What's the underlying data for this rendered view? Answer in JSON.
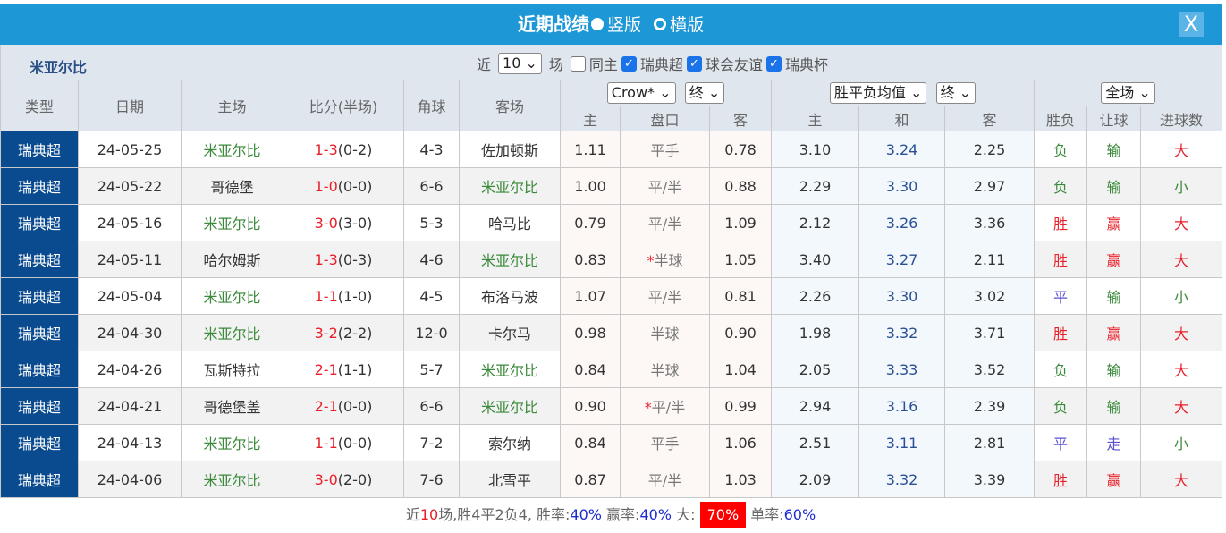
{
  "title": "近期战绩",
  "view_vertical": "竖版",
  "view_horizontal": "横版",
  "close": "X",
  "team": "米亚尔比",
  "filters": {
    "near": "近",
    "count": "10",
    "games": "场",
    "same_home": "同主",
    "comp1": "瑞典超",
    "comp2": "球会友谊",
    "comp3": "瑞典杯"
  },
  "headers": {
    "type": "类型",
    "date": "日期",
    "home": "主场",
    "score": "比分(半场)",
    "corner": "角球",
    "away": "客场",
    "company": "Crow*",
    "final1": "终",
    "avg": "胜平负均值",
    "final2": "终",
    "period": "全场",
    "ah_home": "主",
    "ah_line": "盘口",
    "ah_away": "客",
    "eu_home": "主",
    "eu_draw": "和",
    "eu_away": "客",
    "wl": "胜负",
    "hcp": "让球",
    "goals": "进球数"
  },
  "rows": [
    {
      "type": "瑞典超",
      "date": "24-05-25",
      "home": "米亚尔比",
      "score": "1-3",
      "half": "(0-2)",
      "corner": "4-3",
      "away": "佐加顿斯",
      "h": "1.11",
      "line": "平手",
      "a": "0.78",
      "eh": "3.10",
      "ed": "3.24",
      "ea": "2.25",
      "wl": "负",
      "hcp": "输",
      "goals": "大"
    },
    {
      "type": "瑞典超",
      "date": "24-05-22",
      "home": "哥德堡",
      "score": "1-0",
      "half": "(0-0)",
      "corner": "6-6",
      "away": "米亚尔比",
      "h": "1.00",
      "line": "平/半",
      "a": "0.88",
      "eh": "2.29",
      "ed": "3.30",
      "ea": "2.97",
      "wl": "负",
      "hcp": "输",
      "goals": "小"
    },
    {
      "type": "瑞典超",
      "date": "24-05-16",
      "home": "米亚尔比",
      "score": "3-0",
      "half": "(3-0)",
      "corner": "5-3",
      "away": "哈马比",
      "h": "0.79",
      "line": "平/半",
      "a": "1.09",
      "eh": "2.12",
      "ed": "3.26",
      "ea": "3.36",
      "wl": "胜",
      "hcp": "赢",
      "goals": "大"
    },
    {
      "type": "瑞典超",
      "date": "24-05-11",
      "home": "哈尔姆斯",
      "score": "1-3",
      "half": "(0-3)",
      "corner": "4-6",
      "away": "米亚尔比",
      "h": "0.83",
      "line": "*半球",
      "a": "1.05",
      "eh": "3.40",
      "ed": "3.27",
      "ea": "2.11",
      "wl": "胜",
      "hcp": "赢",
      "goals": "大"
    },
    {
      "type": "瑞典超",
      "date": "24-05-04",
      "home": "米亚尔比",
      "score": "1-1",
      "half": "(1-0)",
      "corner": "4-5",
      "away": "布洛马波",
      "h": "1.07",
      "line": "平/半",
      "a": "0.81",
      "eh": "2.26",
      "ed": "3.30",
      "ea": "3.02",
      "wl": "平",
      "hcp": "输",
      "goals": "小"
    },
    {
      "type": "瑞典超",
      "date": "24-04-30",
      "home": "米亚尔比",
      "score": "3-2",
      "half": "(2-2)",
      "corner": "12-0",
      "away": "卡尔马",
      "h": "0.98",
      "line": "半球",
      "a": "0.90",
      "eh": "1.98",
      "ed": "3.32",
      "ea": "3.71",
      "wl": "胜",
      "hcp": "赢",
      "goals": "大"
    },
    {
      "type": "瑞典超",
      "date": "24-04-26",
      "home": "瓦斯特拉",
      "score": "2-1",
      "half": "(1-1)",
      "corner": "5-7",
      "away": "米亚尔比",
      "h": "0.84",
      "line": "半球",
      "a": "1.04",
      "eh": "2.05",
      "ed": "3.33",
      "ea": "3.52",
      "wl": "负",
      "hcp": "输",
      "goals": "大"
    },
    {
      "type": "瑞典超",
      "date": "24-04-21",
      "home": "哥德堡盖",
      "score": "2-1",
      "half": "(0-0)",
      "corner": "6-6",
      "away": "米亚尔比",
      "h": "0.90",
      "line": "*平/半",
      "a": "0.99",
      "eh": "2.94",
      "ed": "3.16",
      "ea": "2.39",
      "wl": "负",
      "hcp": "输",
      "goals": "大"
    },
    {
      "type": "瑞典超",
      "date": "24-04-13",
      "home": "米亚尔比",
      "score": "1-1",
      "half": "(0-0)",
      "corner": "7-2",
      "away": "索尔纳",
      "h": "0.84",
      "line": "平手",
      "a": "1.06",
      "eh": "2.51",
      "ed": "3.11",
      "ea": "2.81",
      "wl": "平",
      "hcp": "走",
      "goals": "小"
    },
    {
      "type": "瑞典超",
      "date": "24-04-06",
      "home": "米亚尔比",
      "score": "3-0",
      "half": "(2-0)",
      "corner": "7-6",
      "away": "北雪平",
      "h": "0.87",
      "line": "平/半",
      "a": "1.03",
      "eh": "2.09",
      "ed": "3.32",
      "ea": "3.39",
      "wl": "胜",
      "hcp": "赢",
      "goals": "大"
    }
  ],
  "summary": {
    "p1": "近",
    "n": "10",
    "p2": "场,胜4平2负4, 胜率:",
    "win": "40%",
    "p3": " 赢率:",
    "cover": "40%",
    "p4": " 大:",
    "over": "70%",
    "p5": " 单率:",
    "odd": "60%"
  }
}
